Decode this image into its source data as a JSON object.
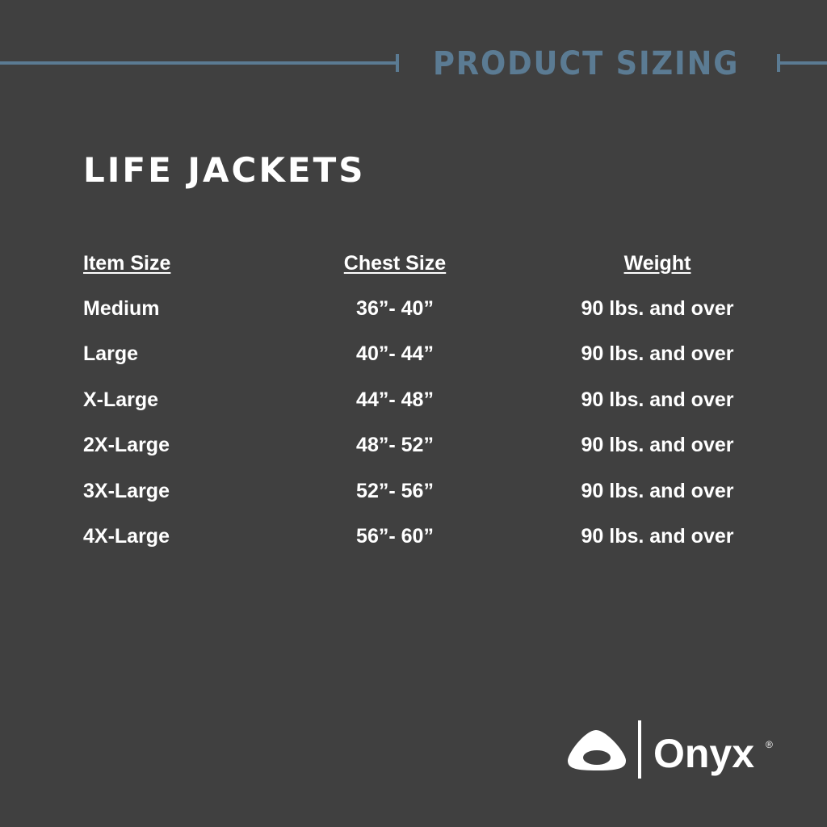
{
  "banner": "PRODUCT SIZING",
  "title": "LIFE JACKETS",
  "headers": [
    "Item Size",
    "Chest Size",
    "Weight"
  ],
  "rows": [
    [
      "Medium",
      "36”- 40”",
      "90 lbs. and over"
    ],
    [
      "Large",
      "40”- 44”",
      "90 lbs. and over"
    ],
    [
      "X-Large",
      "44”- 48”",
      "90 lbs. and over"
    ],
    [
      "2X-Large",
      "48”- 52”",
      "90 lbs. and over"
    ],
    [
      "3X-Large",
      "52”- 56”",
      "90 lbs. and over"
    ],
    [
      "4X-Large",
      "56”- 60”",
      "90 lbs. and over"
    ]
  ],
  "brand": {
    "name": "Onyx",
    "mark": "®"
  },
  "colors": {
    "background": "#404040",
    "accent": "#5b7b93",
    "text": "#ffffff"
  }
}
